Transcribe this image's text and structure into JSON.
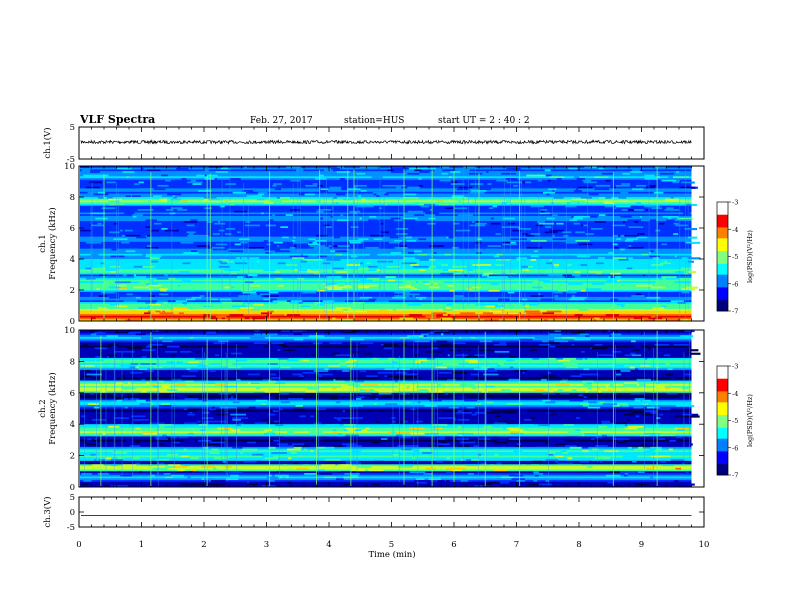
{
  "header": {
    "title": "VLF Spectra",
    "date": "Feb. 27, 2017",
    "station": "station=HUS",
    "start": "start  UT =   2 : 40 : 2"
  },
  "colorbar": {
    "label": "log(PSD)(V²/Hz)",
    "ticks": [
      "-3",
      "-4",
      "-5",
      "-6",
      "-7"
    ],
    "colors": [
      "#00007f",
      "#0000ff",
      "#0080ff",
      "#00ffff",
      "#80ff80",
      "#ffff00",
      "#ff8000",
      "#ff0000",
      "#ffffff"
    ]
  },
  "chart_data": [
    {
      "type": "line",
      "panel": "ch1-waveform",
      "ylabel": "ch.1(V)",
      "ylim": [
        -5,
        5
      ],
      "yticks": [
        "5",
        "-5"
      ],
      "xlim": [
        0,
        10
      ],
      "series": [
        {
          "values_description_level": 0.3,
          "amplitude": 0.25
        }
      ]
    },
    {
      "type": "heatmap",
      "panel": "ch1-spectrogram",
      "ylabel": "ch.1\nFrequency (kHz)",
      "ylabel_lines": [
        "ch.1",
        "Frequency (kHz)"
      ],
      "ylim": [
        0,
        10
      ],
      "yticks": [
        "0",
        "2",
        "4",
        "6",
        "8",
        "10"
      ],
      "xlim": [
        0,
        9.8
      ],
      "bands_khz": [
        {
          "f": 0.3,
          "level": 0.95
        },
        {
          "f": 0.6,
          "level": 0.75
        },
        {
          "f": 1.0,
          "level": 0.55
        },
        {
          "f": 2.1,
          "level": 0.62
        },
        {
          "f": 2.3,
          "level": 0.6
        },
        {
          "f": 2.6,
          "level": 0.55
        },
        {
          "f": 3.2,
          "level": 0.58
        },
        {
          "f": 3.6,
          "level": 0.5
        },
        {
          "f": 3.9,
          "level": 0.5
        },
        {
          "f": 4.3,
          "level": 0.42
        },
        {
          "f": 5.2,
          "level": 0.4
        },
        {
          "f": 6.6,
          "level": 0.38
        },
        {
          "f": 7.7,
          "level": 0.62
        },
        {
          "f": 9.3,
          "level": 0.45
        }
      ],
      "spikes_min": [
        0.4,
        1.15,
        2.05,
        2.1,
        3.05,
        3.85,
        4.3,
        4.4,
        5.2,
        5.65,
        6.0,
        6.4,
        7.05,
        8.55,
        9.25
      ]
    },
    {
      "type": "heatmap",
      "panel": "ch2-spectrogram",
      "ylabel": "ch.2\nFrequency (kHz)",
      "ylabel_lines": [
        "ch.2",
        "Frequency (kHz)"
      ],
      "ylim": [
        0,
        10
      ],
      "yticks": [
        "0",
        "2",
        "4",
        "6",
        "8",
        "10"
      ],
      "xlim": [
        0,
        9.8
      ],
      "bands_khz": [
        {
          "f": 0.6,
          "level": 0.45
        },
        {
          "f": 1.2,
          "level": 0.7
        },
        {
          "f": 1.9,
          "level": 0.55
        },
        {
          "f": 2.3,
          "level": 0.55
        },
        {
          "f": 3.5,
          "level": 0.62
        },
        {
          "f": 3.7,
          "level": 0.6
        },
        {
          "f": 5.3,
          "level": 0.48
        },
        {
          "f": 6.2,
          "level": 0.68
        },
        {
          "f": 6.5,
          "level": 0.64
        },
        {
          "f": 7.7,
          "level": 0.55
        },
        {
          "f": 8.0,
          "level": 0.58
        },
        {
          "f": 9.5,
          "level": 0.45
        }
      ],
      "spikes_min": [
        0.35,
        1.15,
        2.05,
        3.05,
        3.8,
        4.35,
        5.2,
        5.65,
        6.0,
        6.5,
        7.05,
        8.55,
        9.25
      ]
    },
    {
      "type": "line",
      "panel": "ch3-waveform",
      "ylabel": "ch.3(V)",
      "ylim": [
        -5,
        5
      ],
      "yticks": [
        "5",
        "0",
        "-5"
      ],
      "xlim": [
        0,
        10
      ],
      "series": [
        {
          "level": -1.2
        }
      ]
    }
  ],
  "xaxis": {
    "label": "Time  (min)",
    "ticks": [
      "0",
      "1",
      "2",
      "3",
      "4",
      "5",
      "6",
      "7",
      "8",
      "9",
      "10"
    ],
    "range": [
      0,
      10
    ]
  }
}
